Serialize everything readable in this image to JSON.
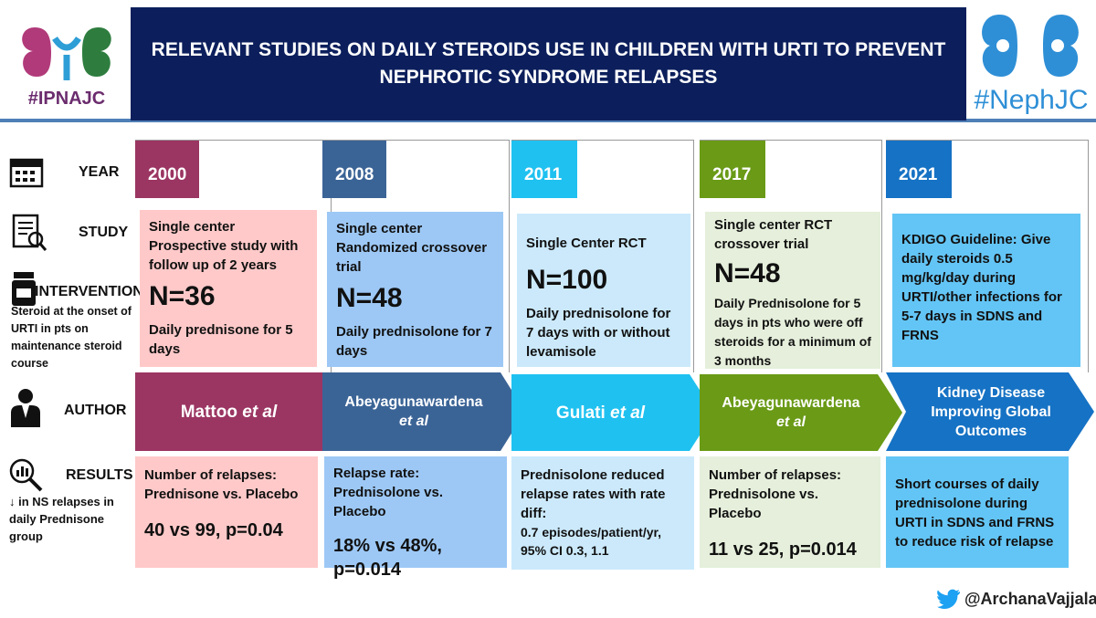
{
  "header": {
    "title": "RELEVANT STUDIES ON DAILY STEROIDS USE  IN CHILDREN WITH URTI TO PREVENT NEPHROTIC SYNDROME RELAPSES",
    "left_logo_text": "#IPNAJC",
    "right_logo_text": "#NephJC"
  },
  "row_labels": {
    "year": "YEAR",
    "study": "STUDY",
    "intervention": "INTERVENTION",
    "intervention_note": "Steroid at the onset of URTI in pts on maintenance steroid course",
    "author": "AUTHOR",
    "results": "RESULTS",
    "results_note": "↓ in  NS relapses in daily Prednisone group"
  },
  "columns": [
    {
      "year": "2000",
      "study": "Single center Prospective study with follow up of 2 years",
      "n": "N=36",
      "intervention": "Daily prednisone for 5 days",
      "author_main": "Mattoo ",
      "author_ital": "et al",
      "result_text": "Number of relapses: Prednisone vs. Placebo",
      "result_big": "40 vs 99, p=0.04",
      "colors": {
        "year": "#9b3562",
        "study": "#ffc9c9",
        "author": "#9b3562",
        "result": "#ffc9c9"
      }
    },
    {
      "year": "2008",
      "study": "Single center Randomized crossover trial",
      "n": "N=48",
      "intervention": "Daily prednisolone for 7 days",
      "author_main": "Abeyagunawardena",
      "author_ital": "et al",
      "result_text": "Relapse rate: Prednisolone vs. Placebo",
      "result_big": "18% vs 48%, p=0.014",
      "colors": {
        "year": "#3b6496",
        "study": "#9dc8f5",
        "author": "#3b6496",
        "result": "#9dc8f5"
      }
    },
    {
      "year": "2011",
      "study": "Single Center RCT",
      "n": "N=100",
      "intervention": "Daily prednisolone for 7 days with or without levamisole",
      "author_main": "Gulati ",
      "author_ital": "et al",
      "result_text": "Prednisolone reduced relapse rates with rate diff:",
      "result_big": "0.7 episodes/patient/yr, 95% CI 0.3, 1.1",
      "colors": {
        "year": "#1fc1f0",
        "study": "#cbe9fb",
        "author": "#1fc1f0",
        "result": "#cbe9fb"
      }
    },
    {
      "year": "2017",
      "study": "Single center RCT crossover trial",
      "n": "N=48",
      "intervention": "Daily Prednisolone for 5 days in pts  who were off steroids for a minimum of 3 months",
      "author_main": "Abeyagunawardena",
      "author_ital": "et al",
      "result_text": "Number of relapses: Prednisolone vs. Placebo",
      "result_big": "11 vs 25, p=0.014",
      "colors": {
        "year": "#6a9a16",
        "study": "#e5efdb",
        "author": "#6a9a16",
        "result": "#e5efdb"
      }
    },
    {
      "year": "2021",
      "study": "KDIGO Guideline: Give daily steroids 0.5 mg/kg/day during URTI/other infections for 5-7 days in SDNS and FRNS",
      "n": "",
      "intervention": "",
      "author_main": "Kidney Disease Improving Global Outcomes",
      "author_ital": "",
      "result_text": "Short courses of daily prednisolone during URTI in SDNS and FRNS to reduce risk of relapse",
      "result_big": "",
      "colors": {
        "year": "#1672c4",
        "study": "#63c5f5",
        "author": "#1672c4",
        "result": "#63c5f5"
      }
    }
  ],
  "footer": {
    "handle": "@ArchanaVajjala"
  }
}
